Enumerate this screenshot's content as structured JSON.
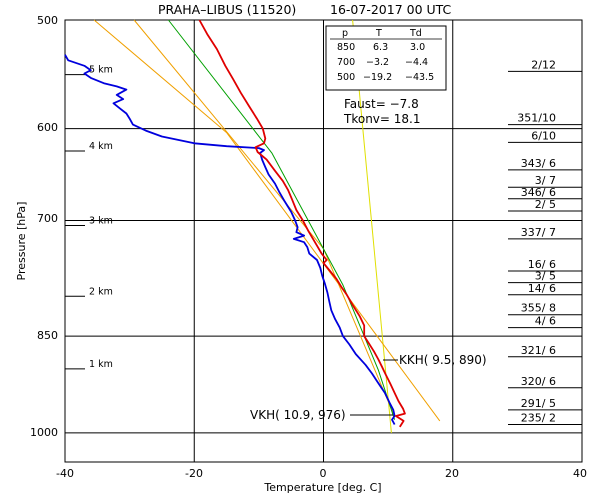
{
  "chart_data": {
    "type": "line",
    "title": "PRAHA–LIBUS (11520)",
    "datetime": "16-07-2017  00  UTC",
    "xlabel": "Temperature [deg. C]",
    "ylabel": "Pressure [hPa]",
    "xlim": [
      -40,
      40
    ],
    "ylim": [
      1050,
      500
    ],
    "yscale": "log",
    "y_direction": "inverted",
    "grid": true,
    "x_ticks": [
      "-40",
      "-20",
      "0",
      "20",
      "40"
    ],
    "y_ticks": [
      "500",
      "600",
      "700",
      "850",
      "1000"
    ],
    "height_labels": [
      {
        "text": "5 km",
        "p": 548
      },
      {
        "text": "4 km",
        "p": 623
      },
      {
        "text": "3 km",
        "p": 706
      },
      {
        "text": "2 km",
        "p": 795
      },
      {
        "text": "1 km",
        "p": 898
      }
    ],
    "table": {
      "headers": [
        "p",
        "T",
        "Td"
      ],
      "rows": [
        [
          "850",
          "6.3",
          "3.0"
        ],
        [
          "700",
          "−3.2",
          "−4.4"
        ],
        [
          "500",
          "−19.2",
          "−43.5"
        ]
      ]
    },
    "indices": {
      "faust": "Faust= −7.8",
      "tkonv": "Tkonv= 18.1"
    },
    "annotations": [
      {
        "text": "KKH(  9.5, 890)",
        "t": 9.5,
        "p": 890
      },
      {
        "text": "VKH( 10.9, 976)",
        "t": 10.9,
        "p": 976
      }
    ],
    "winds": [
      {
        "text": "2/12",
        "p": 545
      },
      {
        "text": "351/10",
        "p": 596
      },
      {
        "text": "6/10",
        "p": 614
      },
      {
        "text": "343/ 6",
        "p": 643
      },
      {
        "text": "3/ 7",
        "p": 662
      },
      {
        "text": "346/ 6",
        "p": 675
      },
      {
        "text": "2/ 5",
        "p": 689
      },
      {
        "text": "337/ 7",
        "p": 722
      },
      {
        "text": "16/ 6",
        "p": 762
      },
      {
        "text": "3/ 5",
        "p": 777
      },
      {
        "text": "14/ 6",
        "p": 793
      },
      {
        "text": "355/ 8",
        "p": 820
      },
      {
        "text": "4/ 6",
        "p": 838
      },
      {
        "text": "321/ 6",
        "p": 880
      },
      {
        "text": "320/ 6",
        "p": 927
      },
      {
        "text": "291/ 5",
        "p": 962
      },
      {
        "text": "235/ 2",
        "p": 986
      }
    ],
    "series": [
      {
        "name": "T",
        "color": "#e00000",
        "points": [
          [
            -19.2,
            500
          ],
          [
            -18,
            512
          ],
          [
            -16.5,
            525
          ],
          [
            -15.2,
            540
          ],
          [
            -14,
            552
          ],
          [
            -12.8,
            565
          ],
          [
            -11.5,
            578
          ],
          [
            -10.3,
            590
          ],
          [
            -9.4,
            600
          ],
          [
            -9.0,
            610
          ],
          [
            -9.2,
            615
          ],
          [
            -10.5,
            619
          ],
          [
            -10.2,
            624
          ],
          [
            -8.8,
            632
          ],
          [
            -7.5,
            644
          ],
          [
            -6.3,
            655
          ],
          [
            -5.5,
            665
          ],
          [
            -4.9,
            675
          ],
          [
            -4.2,
            688
          ],
          [
            -3.2,
            700
          ],
          [
            -2.3,
            713
          ],
          [
            -1.4,
            725
          ],
          [
            -0.3,
            740
          ],
          [
            0.5,
            748
          ],
          [
            0.0,
            752
          ],
          [
            1.0,
            762
          ],
          [
            2.0,
            772
          ],
          [
            2.8,
            783
          ],
          [
            3.6,
            793
          ],
          [
            4.6,
            808
          ],
          [
            5.6,
            822
          ],
          [
            6.3,
            835
          ],
          [
            6.3,
            850
          ],
          [
            7.0,
            860
          ],
          [
            7.8,
            872
          ],
          [
            8.5,
            884
          ],
          [
            9.0,
            894
          ],
          [
            9.6,
            906
          ],
          [
            10.3,
            920
          ],
          [
            11.0,
            935
          ],
          [
            11.6,
            948
          ],
          [
            12.3,
            960
          ],
          [
            12.6,
            968
          ],
          [
            11.2,
            972
          ],
          [
            12.4,
            980
          ],
          [
            11.8,
            990
          ]
        ]
      },
      {
        "name": "Td",
        "color": "#0000dd",
        "points": [
          [
            -40,
            530
          ],
          [
            -39.5,
            535
          ],
          [
            -37,
            540
          ],
          [
            -36,
            544
          ],
          [
            -37,
            547
          ],
          [
            -36,
            551
          ],
          [
            -34,
            556
          ],
          [
            -32,
            559
          ],
          [
            -30.5,
            562
          ],
          [
            -32,
            567
          ],
          [
            -31,
            571
          ],
          [
            -32.5,
            575
          ],
          [
            -31.5,
            580
          ],
          [
            -30.5,
            585
          ],
          [
            -30,
            590
          ],
          [
            -29.5,
            596
          ],
          [
            -27.5,
            602
          ],
          [
            -25,
            608
          ],
          [
            -20,
            615
          ],
          [
            -15,
            618
          ],
          [
            -10,
            620
          ],
          [
            -9.2,
            622
          ],
          [
            -9.8,
            625
          ],
          [
            -9.5,
            632
          ],
          [
            -9.0,
            640
          ],
          [
            -8.5,
            648
          ],
          [
            -7.5,
            658
          ],
          [
            -6.8,
            668
          ],
          [
            -6.0,
            678
          ],
          [
            -5.0,
            690
          ],
          [
            -4.4,
            700
          ],
          [
            -4.0,
            708
          ],
          [
            -4.2,
            714
          ],
          [
            -3.0,
            718
          ],
          [
            -4.6,
            722
          ],
          [
            -3.0,
            726
          ],
          [
            -2.5,
            732
          ],
          [
            -2.2,
            740
          ],
          [
            -1.0,
            748
          ],
          [
            -0.5,
            758
          ],
          [
            -0.2,
            768
          ],
          [
            0.2,
            778
          ],
          [
            0.6,
            790
          ],
          [
            0.9,
            802
          ],
          [
            1.2,
            814
          ],
          [
            1.8,
            826
          ],
          [
            2.5,
            838
          ],
          [
            3.0,
            850
          ],
          [
            4.0,
            862
          ],
          [
            5.0,
            876
          ],
          [
            6.5,
            892
          ],
          [
            7.5,
            905
          ],
          [
            8.5,
            920
          ],
          [
            9.5,
            935
          ],
          [
            10.2,
            950
          ],
          [
            10.8,
            962
          ],
          [
            11.0,
            972
          ],
          [
            10.6,
            978
          ],
          [
            11.0,
            986
          ]
        ]
      },
      {
        "name": "dry-adiabat-1",
        "color": "#f0a000",
        "points": [
          [
            -35.5,
            500
          ],
          [
            -15,
            604
          ],
          [
            18,
            980
          ]
        ]
      },
      {
        "name": "dry-adiabat-2",
        "color": "#f0a000",
        "points": [
          [
            -29.3,
            500
          ],
          [
            0,
            734
          ],
          [
            11,
            973
          ]
        ]
      },
      {
        "name": "moist-adiabat",
        "color": "#00a000",
        "points": [
          [
            -24,
            500
          ],
          [
            -8,
            625
          ],
          [
            3,
            780
          ],
          [
            8.5,
            900
          ],
          [
            11,
            978
          ]
        ]
      },
      {
        "name": "mixing-ratio",
        "color": "#e0e000",
        "points": [
          [
            4.5,
            500
          ],
          [
            10.5,
            1000
          ]
        ]
      }
    ]
  }
}
